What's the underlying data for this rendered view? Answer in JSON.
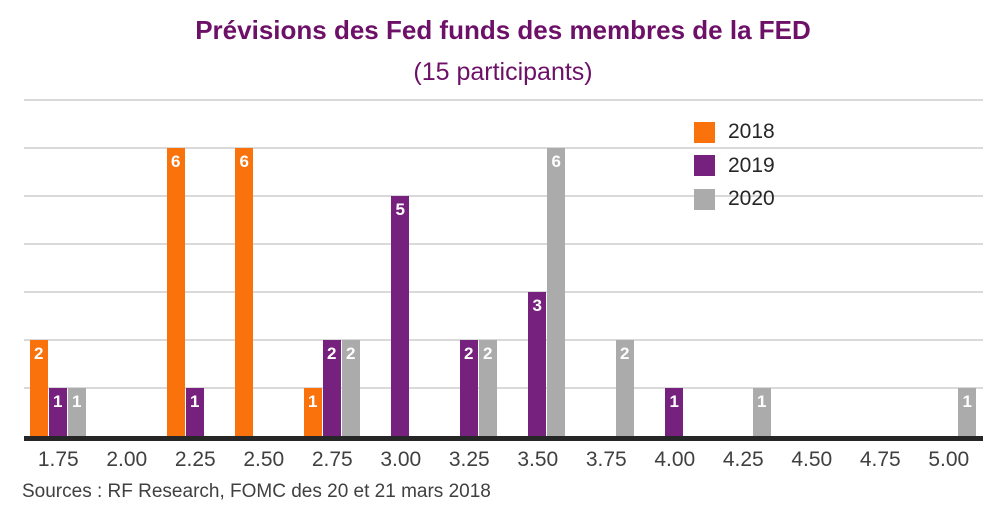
{
  "title": "Prévisions des Fed funds des membres de la FED",
  "subtitle": "(15 participants)",
  "source": "Sources : RF Research, FOMC des 20 et 21 mars 2018",
  "colors": {
    "title": "#6C1068",
    "series_2018": "#F9720B",
    "series_2019": "#76217E",
    "series_2020": "#ABABAB",
    "axis": "#262626",
    "gridline": "#D9D9D9",
    "tick_text": "#404040",
    "legend_text": "#262626",
    "source_text": "#404040",
    "bar_value_text": "#FFFFFF"
  },
  "chart_data": {
    "type": "bar",
    "title": "Prévisions des Fed funds des membres de la FED (15 participants)",
    "categories": [
      "1.75",
      "2.00",
      "2.25",
      "2.50",
      "2.75",
      "3.00",
      "3.25",
      "3.50",
      "3.75",
      "4.00",
      "4.25",
      "4.50",
      "4.75",
      "5.00"
    ],
    "series": [
      {
        "name": "2018",
        "color": "#F9720B",
        "values": [
          2,
          0,
          6,
          6,
          1,
          0,
          0,
          0,
          0,
          0,
          0,
          0,
          0,
          0
        ]
      },
      {
        "name": "2019",
        "color": "#76217E",
        "values": [
          1,
          0,
          1,
          0,
          2,
          5,
          2,
          3,
          0,
          1,
          0,
          0,
          0,
          0
        ]
      },
      {
        "name": "2020",
        "color": "#ABABAB",
        "values": [
          1,
          0,
          0,
          0,
          2,
          0,
          2,
          6,
          2,
          0,
          1,
          0,
          0,
          1
        ]
      }
    ],
    "xlabel": "",
    "ylabel": "",
    "ylim": [
      0,
      7
    ],
    "gridlines": [
      1,
      2,
      3,
      4,
      5,
      6,
      7
    ],
    "y_axis_labels_visible": false,
    "grid": true,
    "legend_position": "top-right",
    "value_labels": "inside-top-white-bold, shown only when value > 0"
  }
}
